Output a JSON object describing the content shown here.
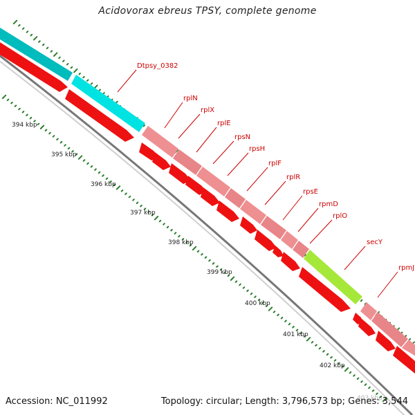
{
  "title": "Acidovorax ebreus TPSY, complete genome",
  "footer": {
    "accession": "Accession: NC_011992",
    "topology": "Topology: circular; Length: 3,796,573 bp; Genes: 3,544"
  },
  "colors": {
    "rna": "#00d7d7",
    "protein": "#e8898b",
    "highlight": "#a6e83a",
    "cds": "#ee1111",
    "backbone": "#777777",
    "ticks": "#2a7d2a",
    "labels": "#cc0000"
  },
  "kbp_labels": [
    "394 kbp",
    "395 kbp",
    "396 kbp",
    "397 kbp",
    "398 kbp",
    "399 kbp",
    "400 kbp",
    "401 kbp",
    "402 kbp",
    "403 kbp"
  ],
  "gene_labels": [
    "Dtpsy_0382",
    "rplN",
    "rplX",
    "rplE",
    "rpsN",
    "rpsH",
    "rplF",
    "rplR",
    "rpsE",
    "rpmD",
    "rplO",
    "secY",
    "rpmJ"
  ]
}
